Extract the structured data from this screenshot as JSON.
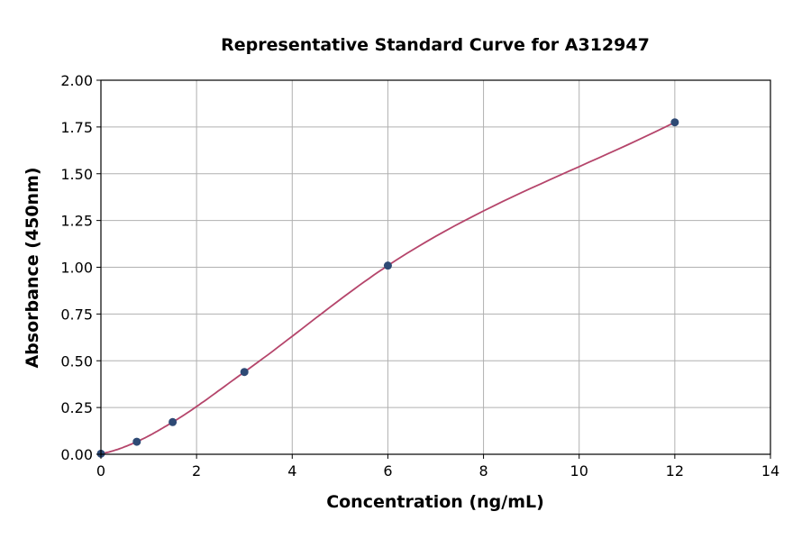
{
  "chart_data": {
    "type": "scatter",
    "title": "Representative Standard Curve for A312947",
    "xlabel": "Concentration (ng/mL)",
    "ylabel": "Absorbance (450nm)",
    "xlim": [
      0,
      14
    ],
    "ylim": [
      0,
      2.0
    ],
    "xticks": [
      0,
      2,
      4,
      6,
      8,
      10,
      12,
      14
    ],
    "xtick_labels": [
      "0",
      "2",
      "4",
      "6",
      "8",
      "10",
      "12",
      "14"
    ],
    "yticks": [
      0,
      0.25,
      0.5,
      0.75,
      1.0,
      1.25,
      1.5,
      1.75,
      2.0
    ],
    "ytick_labels": [
      "0.00",
      "0.25",
      "0.50",
      "0.75",
      "1.00",
      "1.25",
      "1.50",
      "1.75",
      "2.00"
    ],
    "grid": true,
    "points": {
      "x": [
        0,
        0.75,
        1.5,
        3,
        6,
        12
      ],
      "y": [
        0.003,
        0.067,
        0.172,
        0.44,
        1.009,
        1.775
      ]
    },
    "fit_curve": true,
    "colors": {
      "points": "#2e4a75",
      "curve": "#b5456b",
      "grid": "#b0b0b0"
    }
  }
}
